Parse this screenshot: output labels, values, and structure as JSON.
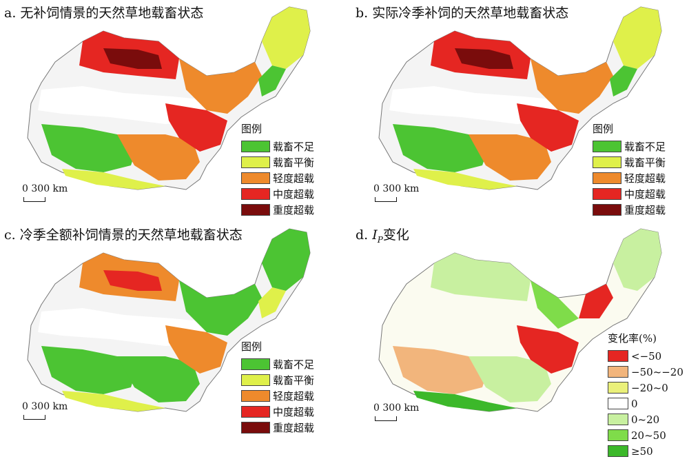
{
  "panels": [
    {
      "title": "a. 无补饲情景的天然草地载畜状态"
    },
    {
      "title": "b. 实际冷季补饲的天然草地载畜状态"
    },
    {
      "title": "c. 冷季全额补饲情景的天然草地载畜状态"
    },
    {
      "title_prefix": "d. ",
      "title_italic": "I",
      "title_sub": "P",
      "title_suffix": "变化"
    }
  ],
  "legend_status": {
    "heading": "图例",
    "items": [
      {
        "label": "载畜不足",
        "color": "#4cc433"
      },
      {
        "label": "载畜平衡",
        "color": "#dff04a"
      },
      {
        "label": "轻度超载",
        "color": "#ee8a2c"
      },
      {
        "label": "中度超载",
        "color": "#e52622"
      },
      {
        "label": "重度超载",
        "color": "#7a0c0c"
      }
    ]
  },
  "legend_change": {
    "heading": "变化率(%)",
    "items": [
      {
        "label": "<−50",
        "color": "#e52622"
      },
      {
        "label": "−50~−20",
        "color": "#f2b57c"
      },
      {
        "label": "−20~0",
        "color": "#eaf07a"
      },
      {
        "label": "0",
        "color": "#ffffff"
      },
      {
        "label": "0~20",
        "color": "#c8f0a0"
      },
      {
        "label": "20~50",
        "color": "#7fdc4a"
      },
      {
        "label": "≥50",
        "color": "#3cb82a"
      }
    ]
  },
  "scalebar": {
    "zero": "0",
    "dist": "300 km"
  }
}
